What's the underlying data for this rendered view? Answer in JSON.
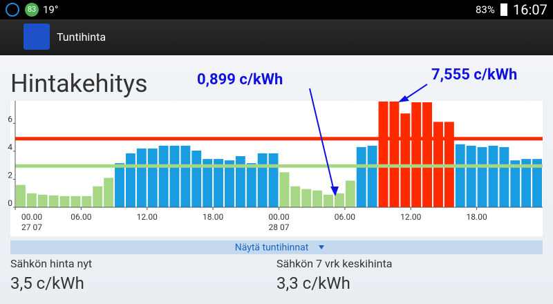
{
  "status_bar": {
    "badge": "83",
    "temperature": "19°",
    "battery": "83%",
    "time": "16:07"
  },
  "app_bar": {
    "title": "Tuntihinta"
  },
  "heading": "Hintakehitys",
  "toggle": "Näytä tuntihinnat",
  "stats": [
    {
      "label": "Sähkön hinta nyt",
      "value": "3,5 c/kWh"
    },
    {
      "label": "Sähkön 7 vrk keskihinta",
      "value": "3,3 c/kWh"
    }
  ],
  "chart_data": {
    "type": "bar",
    "categories": [
      "00.00",
      null,
      null,
      null,
      null,
      null,
      "06.00",
      null,
      null,
      null,
      null,
      null,
      "12.00",
      null,
      null,
      null,
      null,
      null,
      "18.00",
      null,
      null,
      null,
      null,
      null,
      "00.00",
      null,
      null,
      null,
      null,
      null,
      "06.00",
      null,
      null,
      null,
      null,
      null,
      "12.00",
      null,
      null,
      null,
      null,
      null,
      "18.00",
      null,
      null,
      null,
      null,
      null
    ],
    "category_dates": [
      "27 07",
      null,
      null,
      null,
      null,
      null,
      null,
      null,
      null,
      null,
      null,
      null,
      null,
      null,
      null,
      null,
      null,
      null,
      null,
      null,
      null,
      null,
      null,
      null,
      "28 07",
      null,
      null,
      null,
      null,
      null,
      null,
      null,
      null,
      null,
      null,
      null,
      null,
      null,
      null,
      null,
      null,
      null,
      null,
      null,
      null,
      null,
      null,
      null
    ],
    "values": [
      1.6,
      1.0,
      0.9,
      0.85,
      0.8,
      0.8,
      0.8,
      1.5,
      2.1,
      3.15,
      3.85,
      4.2,
      4.2,
      4.4,
      4.4,
      4.4,
      4.05,
      3.45,
      3.45,
      3.35,
      3.65,
      3.15,
      3.85,
      3.85,
      2.5,
      1.5,
      1.3,
      1.2,
      0.899,
      1.0,
      1.9,
      4.3,
      4.4,
      7.555,
      7.555,
      6.7,
      7.5,
      7.5,
      6.1,
      6.1,
      4.5,
      4.4,
      4.3,
      4.4,
      4.3,
      3.35,
      3.45,
      3.45
    ],
    "colors": {
      "low": "#a6d785",
      "mid": "#1a9de0",
      "high": "#ff2a00"
    },
    "thresholds": [
      {
        "value": 2.95,
        "color": "#a6d785"
      },
      {
        "value": 4.9,
        "color": "#ff2a00"
      }
    ],
    "ylim": [
      0,
      7.6
    ],
    "yticks": [
      0,
      2,
      4,
      6
    ],
    "annotations": [
      "0,899 c/kWh",
      "7,555 c/kWh"
    ]
  }
}
